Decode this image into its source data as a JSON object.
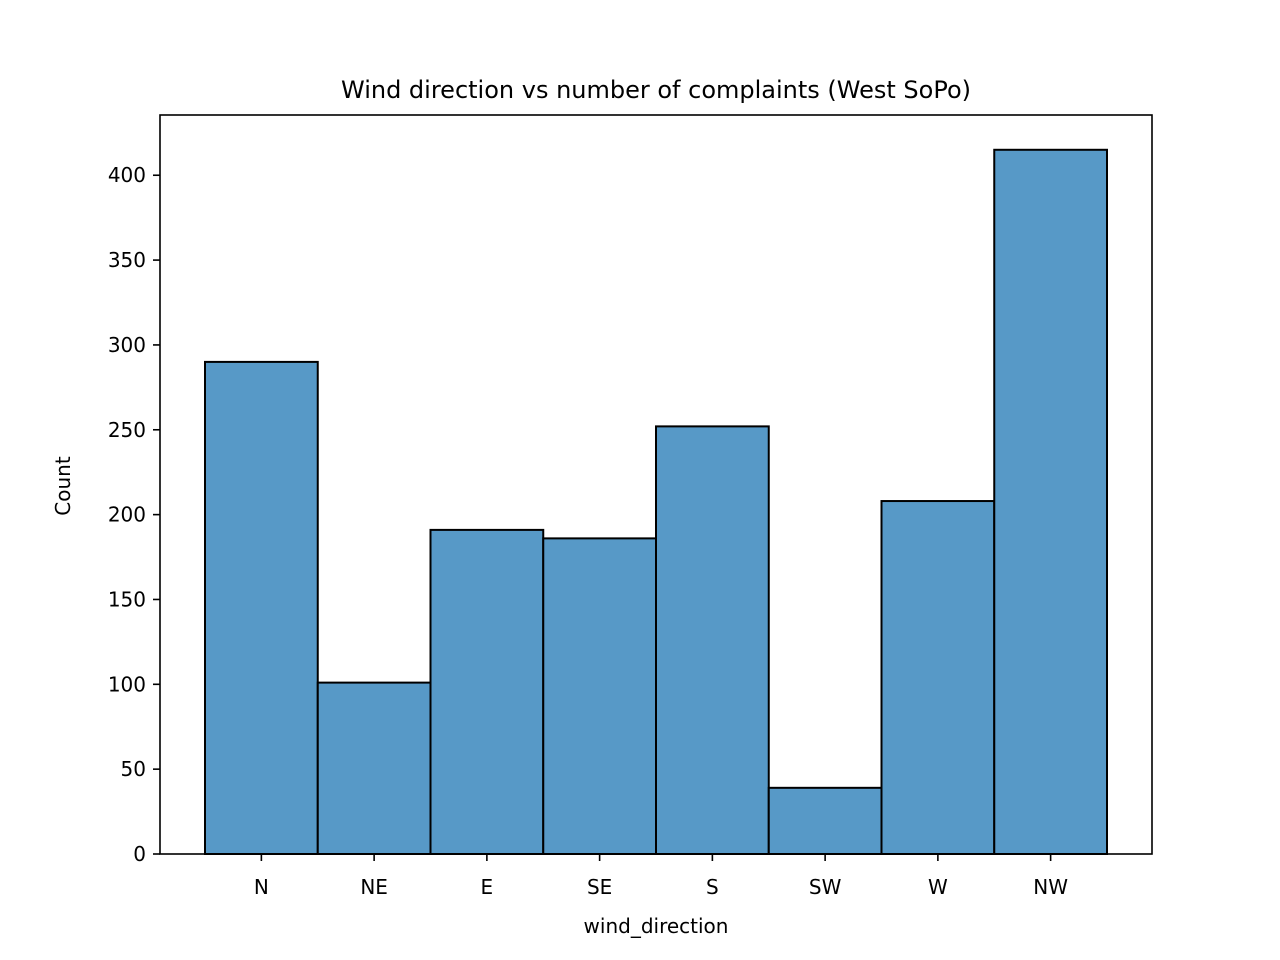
{
  "chart_data": {
    "type": "bar",
    "title": "Wind direction vs number of complaints (West SoPo)",
    "xlabel": "wind_direction",
    "ylabel": "Count",
    "categories": [
      "N",
      "NE",
      "E",
      "SE",
      "S",
      "SW",
      "W",
      "NW"
    ],
    "values": [
      290,
      101,
      191,
      186,
      252,
      39,
      208,
      415
    ],
    "ylim": [
      0,
      435.5
    ],
    "yticks": [
      0,
      50,
      100,
      150,
      200,
      250,
      300,
      350,
      400
    ],
    "grid": false,
    "legend": "none",
    "bar_color": "#5799c7",
    "edge_color": "#000000"
  }
}
